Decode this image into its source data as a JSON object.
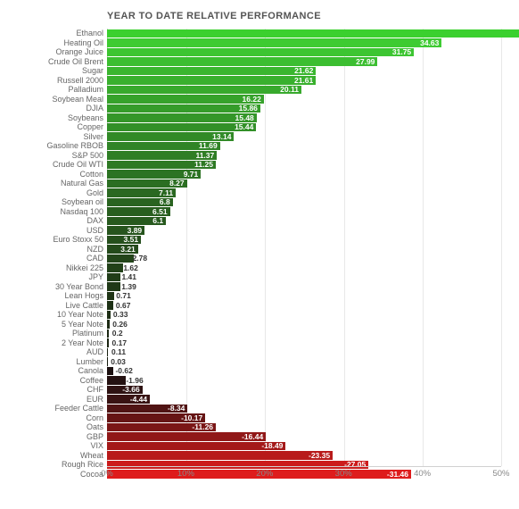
{
  "chart": {
    "type": "bar-horizontal",
    "title": "YEAR TO DATE RELATIVE PERFORMANCE",
    "title_fontsize": 11,
    "label_fontsize": 9,
    "value_fontsize": 8.5,
    "background_color": "#ffffff",
    "grid_color": "#e8e8e8",
    "axis_color": "#d0d0d0",
    "label_color": "#666666",
    "value_text_color": "#ffffff",
    "xrange_display": [
      0,
      50
    ],
    "data_range": [
      -50,
      50
    ],
    "xticks": [
      {
        "pos": 0,
        "label": "0%"
      },
      {
        "pos": 10,
        "label": "10%"
      },
      {
        "pos": 20,
        "label": "20%"
      },
      {
        "pos": 30,
        "label": "30%"
      },
      {
        "pos": 40,
        "label": "40%"
      },
      {
        "pos": 50,
        "label": "50%"
      }
    ],
    "row_height": 10.5,
    "items": [
      {
        "label": "Ethanol",
        "value": 46.8,
        "color": "#3bd02f"
      },
      {
        "label": "Heating Oil",
        "value": 34.63,
        "color": "#3ecb32"
      },
      {
        "label": "Orange Juice",
        "value": 31.75,
        "color": "#3dc532"
      },
      {
        "label": "Crude Oil Brent",
        "value": 27.99,
        "color": "#3cbe31"
      },
      {
        "label": "Sugar",
        "value": 21.62,
        "color": "#3ab62f"
      },
      {
        "label": "Russell 2000",
        "value": 21.61,
        "color": "#39b02e"
      },
      {
        "label": "Palladium",
        "value": 20.11,
        "color": "#38a92d"
      },
      {
        "label": "Soybean Meal",
        "value": 16.22,
        "color": "#36a22b"
      },
      {
        "label": "DJIA",
        "value": 15.86,
        "color": "#359c2a"
      },
      {
        "label": "Soybeans",
        "value": 15.48,
        "color": "#349629"
      },
      {
        "label": "Copper",
        "value": 15.44,
        "color": "#329028"
      },
      {
        "label": "Silver",
        "value": 13.14,
        "color": "#318a27"
      },
      {
        "label": "Gasoline RBOB",
        "value": 11.69,
        "color": "#308426"
      },
      {
        "label": "S&P 500",
        "value": 11.37,
        "color": "#2f7e25"
      },
      {
        "label": "Crude Oil WTI",
        "value": 11.25,
        "color": "#2e7924"
      },
      {
        "label": "Cotton",
        "value": 9.71,
        "color": "#2c7323"
      },
      {
        "label": "Natural Gas",
        "value": 8.27,
        "color": "#2b6e22"
      },
      {
        "label": "Gold",
        "value": 7.11,
        "color": "#2a6821"
      },
      {
        "label": "Soybean oil",
        "value": 6.8,
        "color": "#296320"
      },
      {
        "label": "Nasdaq 100",
        "value": 6.51,
        "color": "#285e1f"
      },
      {
        "label": "DAX",
        "value": 6.1,
        "color": "#27591e"
      },
      {
        "label": "USD",
        "value": 3.89,
        "color": "#26541d"
      },
      {
        "label": "Euro Stoxx 50",
        "value": 3.51,
        "color": "#254f1c"
      },
      {
        "label": "NZD",
        "value": 3.21,
        "color": "#244a1b"
      },
      {
        "label": "CAD",
        "value": 2.78,
        "color": "#23451a"
      },
      {
        "label": "Nikkei 225",
        "value": 1.62,
        "color": "#224119"
      },
      {
        "label": "JPY",
        "value": 1.41,
        "color": "#213d18"
      },
      {
        "label": "30 Year Bond",
        "value": 1.39,
        "color": "#203917"
      },
      {
        "label": "Lean Hogs",
        "value": 0.71,
        "color": "#1f3516"
      },
      {
        "label": "Live Cattle",
        "value": 0.67,
        "color": "#1e3115"
      },
      {
        "label": "10 Year Note",
        "value": 0.33,
        "color": "#1d2d14"
      },
      {
        "label": "5 Year Note",
        "value": 0.26,
        "color": "#1c2913"
      },
      {
        "label": "Platinum",
        "value": 0.2,
        "color": "#1b2612"
      },
      {
        "label": "2 Year Note",
        "value": 0.17,
        "color": "#1a2311"
      },
      {
        "label": "AUD",
        "value": 0.11,
        "color": "#192010"
      },
      {
        "label": "Lumber",
        "value": 0.03,
        "color": "#181d0f"
      },
      {
        "label": "Canola",
        "value": -0.62,
        "color": "#1c1010"
      },
      {
        "label": "Coffee",
        "value": -1.96,
        "color": "#241111"
      },
      {
        "label": "CHF",
        "value": -3.66,
        "color": "#2e1212"
      },
      {
        "label": "EUR",
        "value": -4.44,
        "color": "#391313"
      },
      {
        "label": "Feeder Cattle",
        "value": -8.34,
        "color": "#501414"
      },
      {
        "label": "Corn",
        "value": -10.17,
        "color": "#661515"
      },
      {
        "label": "Oats",
        "value": -11.26,
        "color": "#7a1616"
      },
      {
        "label": "GBP",
        "value": -16.44,
        "color": "#901818"
      },
      {
        "label": "VIX",
        "value": -18.49,
        "color": "#a41919"
      },
      {
        "label": "Wheat",
        "value": -23.35,
        "color": "#b81a1a"
      },
      {
        "label": "Rough Rice",
        "value": -27.05,
        "color": "#cc1b1b"
      },
      {
        "label": "Cocoa",
        "value": -31.46,
        "color": "#de1c1c"
      }
    ]
  }
}
